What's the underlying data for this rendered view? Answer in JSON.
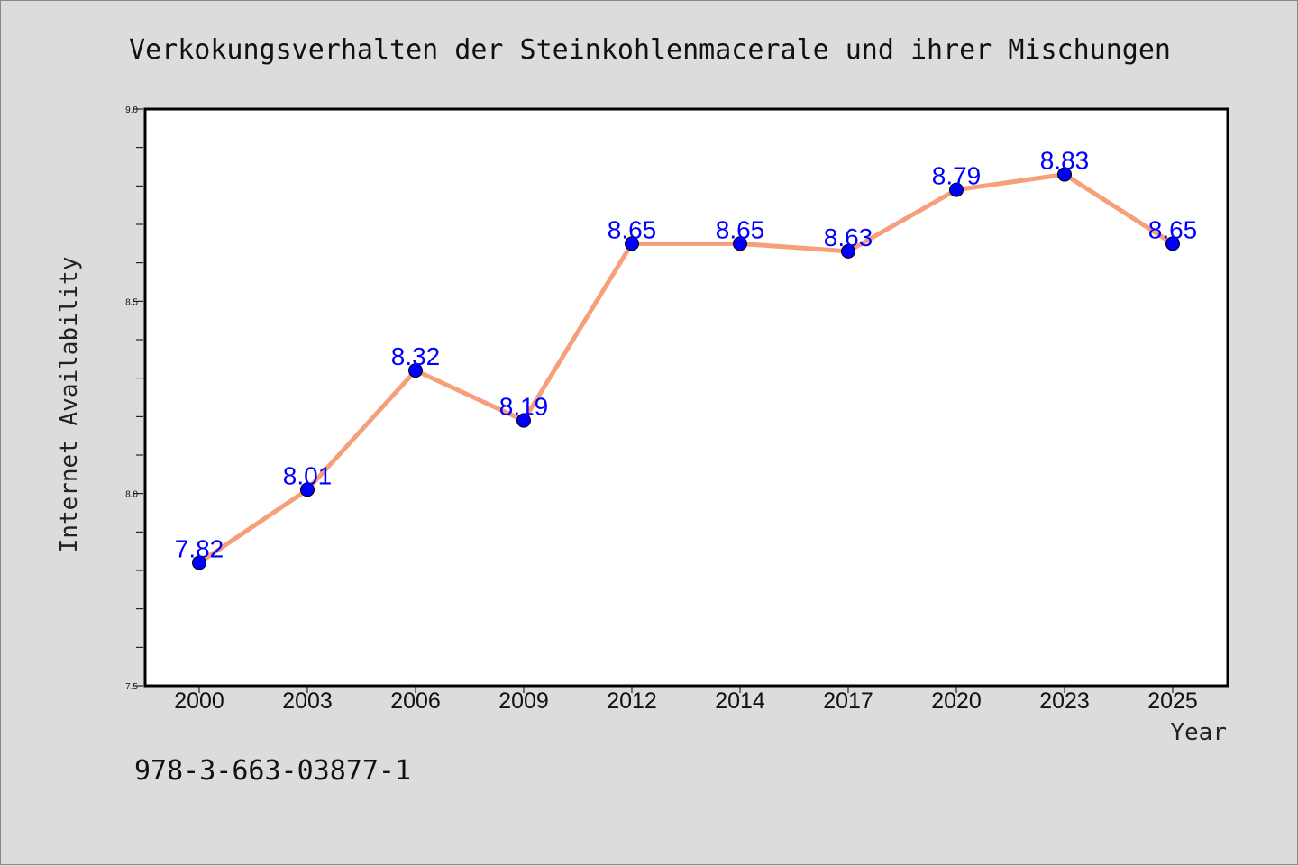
{
  "chart_data": {
    "type": "line",
    "title": "Verkokungsverhalten der Steinkohlenmacerale und ihrer Mischungen",
    "xlabel": "Year",
    "ylabel": "Internet Availability",
    "categories": [
      "2000",
      "2003",
      "2006",
      "2009",
      "2012",
      "2014",
      "2017",
      "2020",
      "2023",
      "2025"
    ],
    "series": [
      {
        "values": [
          7.82,
          8.01,
          8.32,
          8.19,
          8.65,
          8.65,
          8.63,
          8.79,
          8.83,
          8.65
        ],
        "labels": [
          "7.82",
          "8.01",
          "8.32",
          "8.19",
          "8.65",
          "8.65",
          "8.63",
          "8.79",
          "8.83",
          "8.65"
        ],
        "line_color": "#f5a07a",
        "marker_color": "#0000ff"
      }
    ],
    "ylim": [
      7.5,
      9.0
    ],
    "y_ticks": [
      "7.5",
      "8.0",
      "8.5",
      "9.0"
    ],
    "grid": false,
    "legend": "none"
  },
  "footer": {
    "isbn": "978-3-663-03877-1"
  },
  "colors": {
    "background": "#dcdcdc",
    "plot_background": "#ffffff",
    "line": "#f5a07a",
    "marker": "#0000ff",
    "data_label": "#0000ff"
  }
}
